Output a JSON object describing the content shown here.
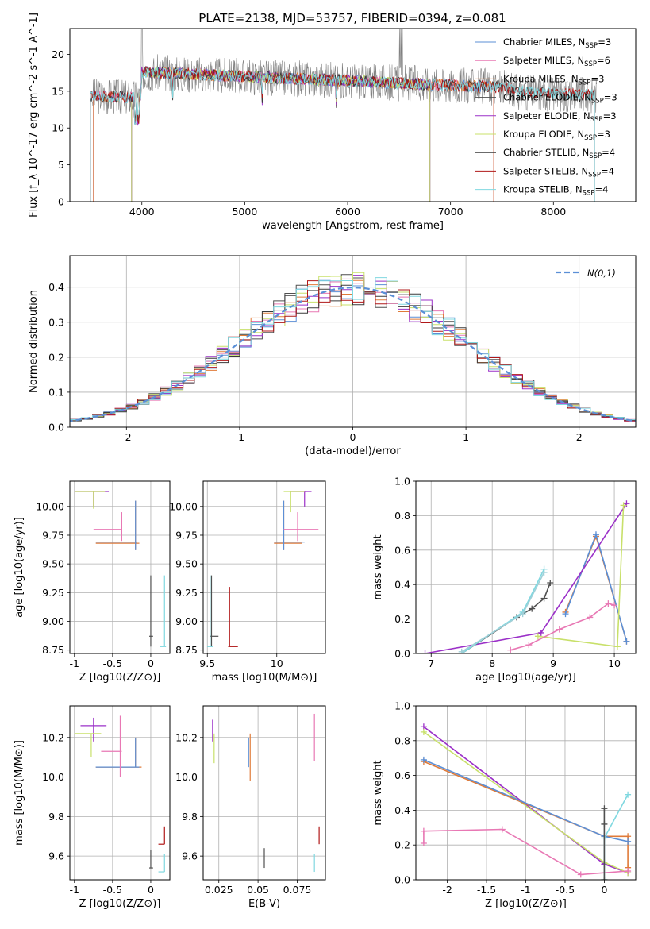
{
  "chart_data": [
    {
      "id": "spectrum",
      "type": "line",
      "title": "PLATE=2138, MJD=53757, FIBERID=0394, z=0.081",
      "xlabel": "wavelength [Angstrom, rest frame]",
      "ylabel": "Flux [f_λ 10^-17 erg cm^-2 s^-1 A^-1]",
      "xlim": [
        3300,
        8800
      ],
      "ylim": [
        0,
        23.5
      ],
      "xticks": [
        4000,
        5000,
        6000,
        7000,
        8000
      ],
      "yticks": [
        0,
        5,
        10,
        15,
        20
      ],
      "grid": false,
      "legend_position": "top-right",
      "series": [
        {
          "name": "Chabrier MILES, N_SSP=3",
          "color": "#5b8fd6",
          "start": 3530,
          "end": 7420
        },
        {
          "name": "Salpeter MILES, N_SSP=6",
          "color": "#e878b4",
          "start": 3530,
          "end": 7420
        },
        {
          "name": "Kroupa MILES, N_SSP=3",
          "color": "#e07b39",
          "start": 3530,
          "end": 7420
        },
        {
          "name": "Chabrier ELODIE, N_SSP=3",
          "color": "#4f4f4f",
          "start": 3900,
          "end": 6800
        },
        {
          "name": "Salpeter ELODIE, N_SSP=3",
          "color": "#9b30c8",
          "start": 3900,
          "end": 6800
        },
        {
          "name": "Kroupa ELODIE, N_SSP=3",
          "color": "#c8e06a",
          "start": 3900,
          "end": 6800
        },
        {
          "name": "Chabrier STELIB, N_SSP=4",
          "color": "#3a3a3a",
          "start": 3500,
          "end": 8400
        },
        {
          "name": "Salpeter STELIB, N_SSP=4",
          "color": "#b01818",
          "start": 3500,
          "end": 8400
        },
        {
          "name": "Kroupa STELIB, N_SSP=4",
          "color": "#80d8e0",
          "start": 3500,
          "end": 8400
        }
      ],
      "data_color": "#808080"
    },
    {
      "id": "residuals",
      "type": "line",
      "xlabel": "(data-model)/error",
      "ylabel": "Normed distribution",
      "xlim": [
        -2.5,
        2.5
      ],
      "ylim": [
        0,
        0.49
      ],
      "xticks": [
        -2,
        -1,
        0,
        1,
        2
      ],
      "yticks": [
        0.0,
        0.1,
        0.2,
        0.3,
        0.4
      ],
      "grid": true,
      "legend_label": "N(0,1)",
      "legend_position": "top-right",
      "gaussian_color": "#5b8fd6"
    },
    {
      "id": "age-vs-Z",
      "type": "scatter",
      "xlabel": "Z [log10(Z/Z⊙)]",
      "ylabel": "age [log10(age/yr)]",
      "xlim": [
        -1.06,
        0.25
      ],
      "ylim": [
        8.72,
        10.22
      ],
      "xticks": [
        -1.0,
        -0.5,
        0.0
      ],
      "yticks": [
        8.75,
        9.0,
        9.25,
        9.5,
        9.75,
        10.0
      ],
      "grid": true
    },
    {
      "id": "age-vs-mass",
      "type": "scatter",
      "xlabel": "mass [log10(M/M⊙)]",
      "xlim": [
        9.47,
        10.35
      ],
      "ylim": [
        8.72,
        10.22
      ],
      "xticks": [
        9.5,
        10.0
      ],
      "yticks": [
        8.75,
        9.0,
        9.25,
        9.5,
        9.75,
        10.0
      ],
      "grid": true
    },
    {
      "id": "massweight-vs-age",
      "type": "line",
      "xlabel": "age [log10(age/yr)]",
      "ylabel": "mass weight",
      "xlim": [
        6.75,
        10.35
      ],
      "ylim": [
        0.0,
        1.0
      ],
      "xticks": [
        7,
        8,
        9,
        10
      ],
      "yticks": [
        0.0,
        0.2,
        0.4,
        0.6,
        0.8,
        1.0
      ],
      "grid": true,
      "series": [
        {
          "color": "#e07b39",
          "x": [
            9.2,
            9.7,
            10.2
          ],
          "y": [
            0.24,
            0.68,
            0.07
          ]
        },
        {
          "color": "#5b8fd6",
          "x": [
            9.2,
            9.7,
            10.2
          ],
          "y": [
            0.23,
            0.69,
            0.07
          ]
        },
        {
          "color": "#9b30c8",
          "x": [
            6.9,
            8.8,
            10.2
          ],
          "y": [
            0.0,
            0.12,
            0.87
          ]
        },
        {
          "color": "#c8e06a",
          "x": [
            8.75,
            10.05,
            10.15
          ],
          "y": [
            0.1,
            0.04,
            0.86
          ]
        },
        {
          "color": "#e878b4",
          "x": [
            8.3,
            8.6,
            9.1,
            9.6,
            9.9,
            10.0
          ],
          "y": [
            0.02,
            0.05,
            0.14,
            0.21,
            0.29,
            0.28
          ]
        },
        {
          "color": "#4f4f4f",
          "x": [
            7.5,
            8.4,
            8.65,
            8.85,
            8.95
          ],
          "y": [
            0.0,
            0.21,
            0.26,
            0.32,
            0.41
          ]
        },
        {
          "color": "#80d8e0",
          "x": [
            7.5,
            8.5,
            8.85
          ],
          "y": [
            0.0,
            0.24,
            0.49
          ]
        },
        {
          "color": "#a0d0d8",
          "x": [
            7.5,
            8.5,
            8.85
          ],
          "y": [
            0.01,
            0.23,
            0.47
          ]
        }
      ]
    },
    {
      "id": "mass-vs-Z",
      "type": "scatter",
      "xlabel": "Z [log10(Z/Z⊙)]",
      "ylabel": "mass [log10(M/M⊙)]",
      "xlim": [
        -1.06,
        0.25
      ],
      "ylim": [
        9.48,
        10.36
      ],
      "xticks": [
        -1.0,
        -0.5,
        0.0
      ],
      "yticks": [
        9.6,
        9.8,
        10.0,
        10.2
      ],
      "grid": true
    },
    {
      "id": "mass-vs-EBV",
      "type": "scatter",
      "xlabel": "E(B-V)",
      "xlim": [
        0.015,
        0.093
      ],
      "ylim": [
        9.48,
        10.36
      ],
      "xticks": [
        0.025,
        0.05,
        0.075
      ],
      "yticks": [
        9.6,
        9.8,
        10.0,
        10.2
      ],
      "grid": true
    },
    {
      "id": "massweight-vs-Z",
      "type": "line",
      "xlabel": "Z [log10(Z/Z⊙)]",
      "ylabel": "mass weight",
      "xlim": [
        -2.4,
        0.4
      ],
      "ylim": [
        0.0,
        1.0
      ],
      "xticks": [
        -2.0,
        -1.5,
        -1.0,
        -0.5,
        0.0
      ],
      "yticks": [
        0.0,
        0.2,
        0.4,
        0.6,
        0.8,
        1.0
      ],
      "grid": true,
      "series": [
        {
          "color": "#9b30c8",
          "x": [
            -2.3,
            0.0,
            0.3
          ],
          "y": [
            0.88,
            0.09,
            0.04
          ]
        },
        {
          "color": "#c8e06a",
          "x": [
            -2.3,
            0.0,
            0.3
          ],
          "y": [
            0.85,
            0.1,
            0.04
          ]
        },
        {
          "color": "#e07b39",
          "x": [
            -2.3,
            0.0,
            0.3,
            0.3
          ],
          "y": [
            0.68,
            0.25,
            0.25,
            0.07
          ]
        },
        {
          "color": "#5b8fd6",
          "x": [
            -2.3,
            0.0,
            0.3
          ],
          "y": [
            0.69,
            0.25,
            0.22
          ]
        },
        {
          "color": "#e878b4",
          "x": [
            -2.3,
            -2.3,
            -1.3,
            -0.3,
            0.3
          ],
          "y": [
            0.21,
            0.28,
            0.29,
            0.03,
            0.05
          ]
        },
        {
          "color": "#80d8e0",
          "x": [
            0.0,
            0.0,
            0.3
          ],
          "y": [
            0.0,
            0.24,
            0.49
          ]
        },
        {
          "color": "#4f4f4f",
          "x": [
            0.0,
            0.0,
            0.0
          ],
          "y": [
            0.0,
            0.32,
            0.41
          ]
        }
      ]
    }
  ]
}
